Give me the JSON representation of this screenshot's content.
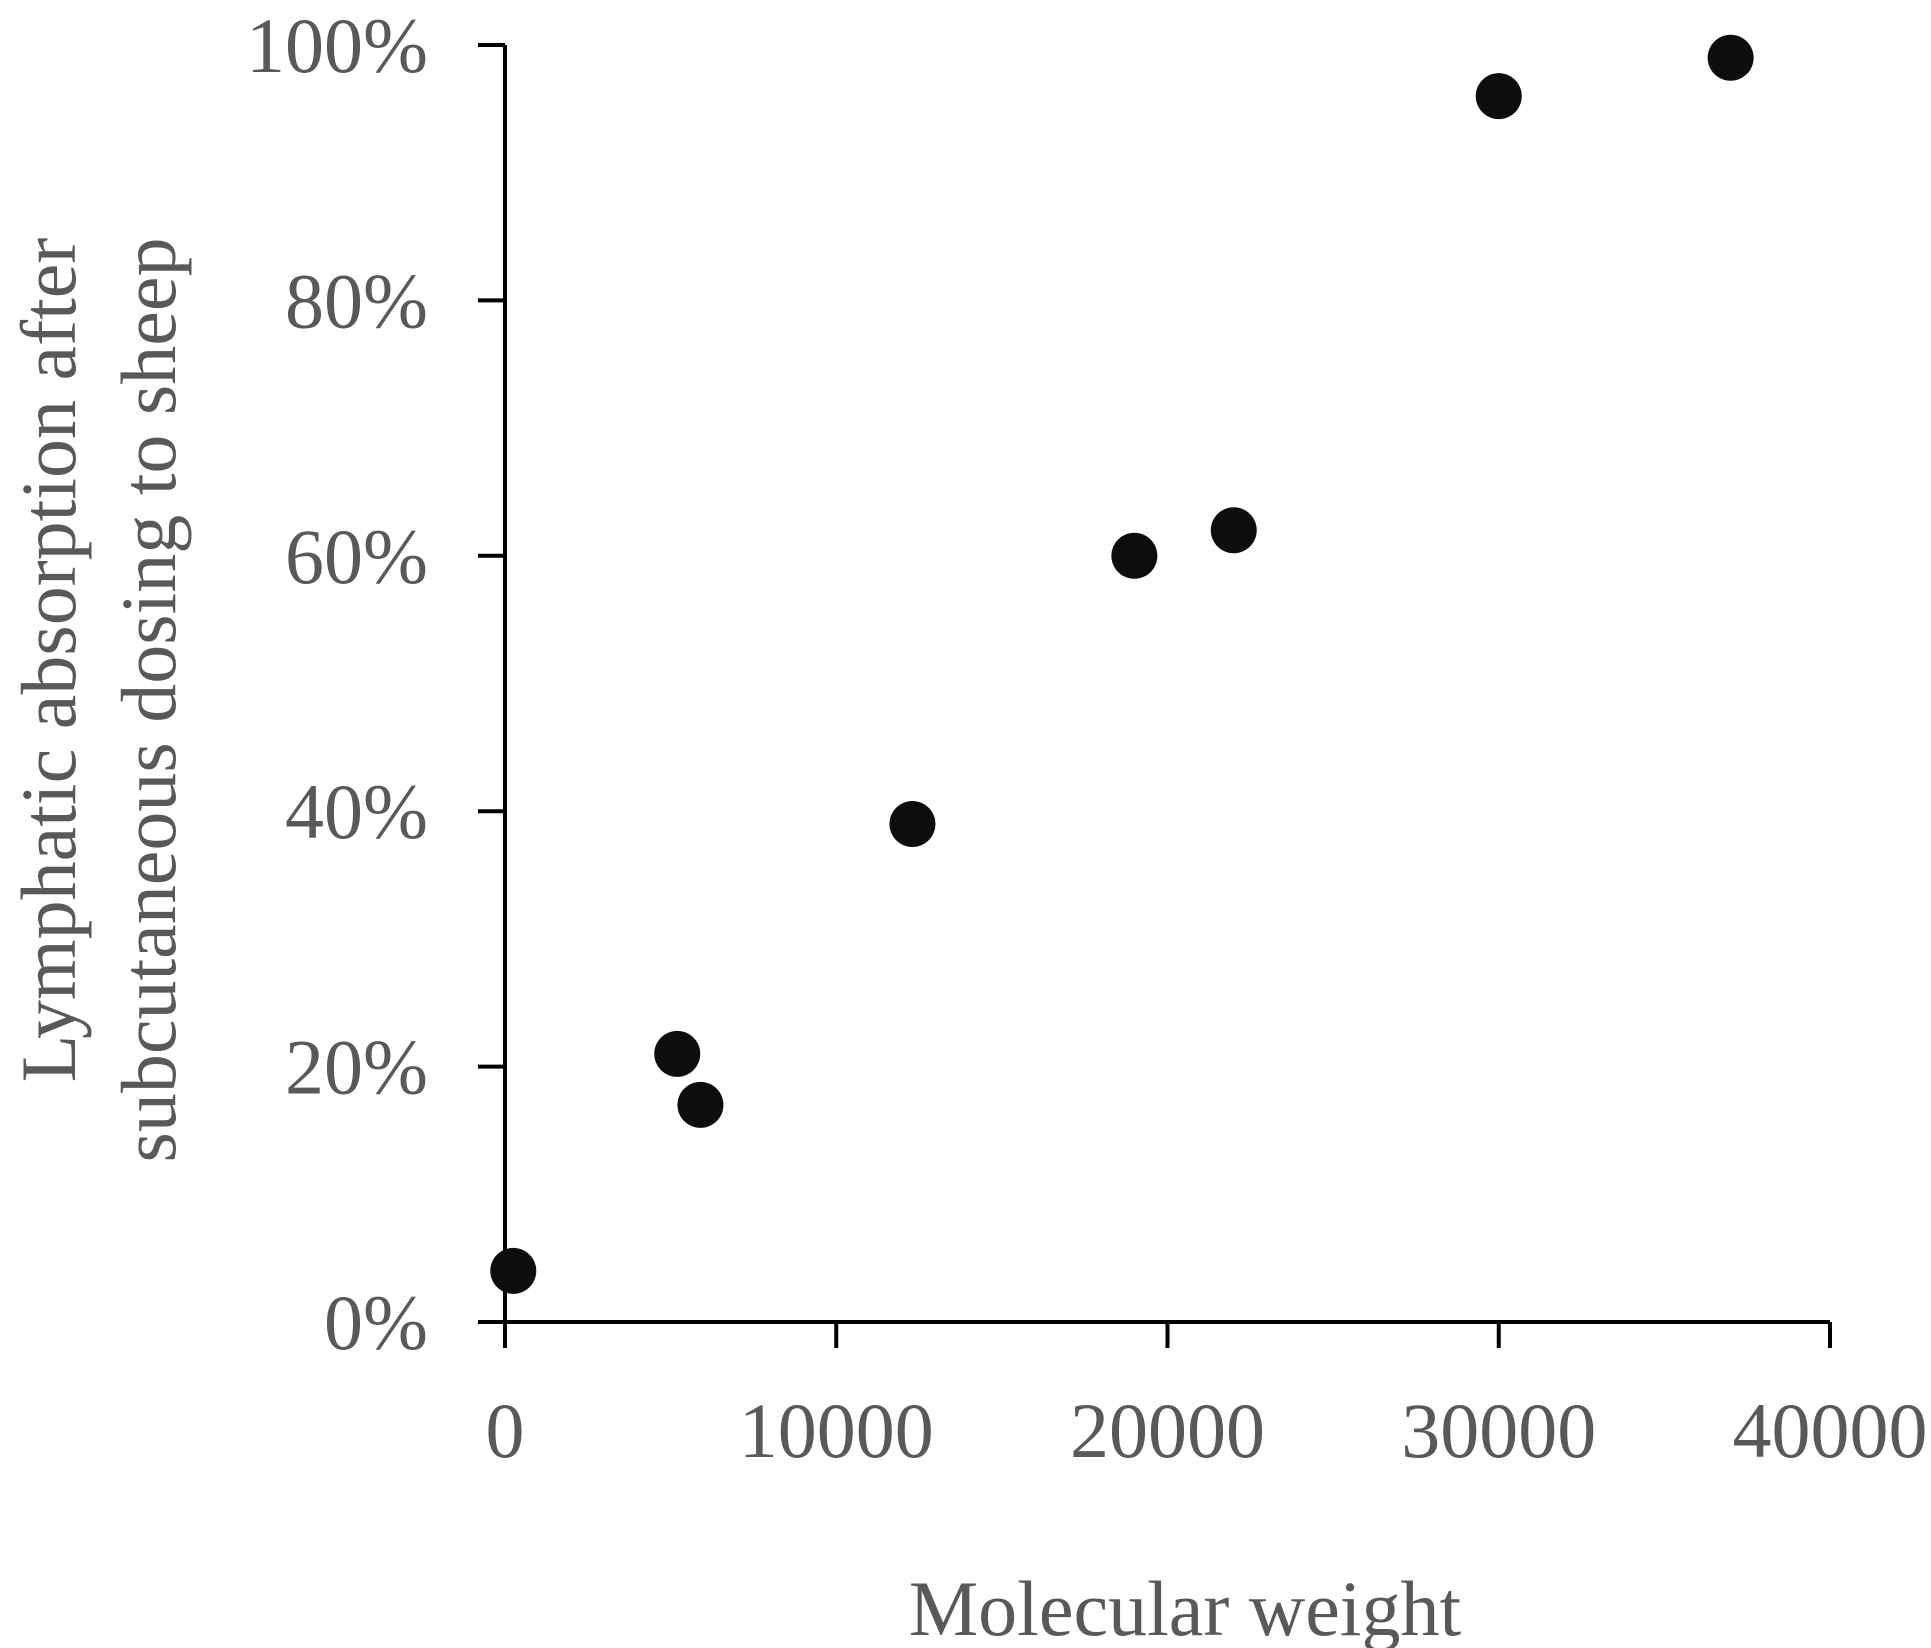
{
  "chart_data": {
    "type": "scatter",
    "title": "",
    "xlabel": "Molecular weight",
    "ylabel_lines": [
      "Lymphatic absorption after",
      "subcutaneous dosing to sheep"
    ],
    "xlim": [
      0,
      40000
    ],
    "ylim": [
      0,
      100
    ],
    "x_ticks": [
      {
        "value": 0,
        "label": "0"
      },
      {
        "value": 10000,
        "label": "10000"
      },
      {
        "value": 20000,
        "label": "20000"
      },
      {
        "value": 30000,
        "label": "30000"
      },
      {
        "value": 40000,
        "label": "40000"
      }
    ],
    "y_ticks": [
      {
        "value": 0,
        "label": "0%"
      },
      {
        "value": 20,
        "label": "20%"
      },
      {
        "value": 40,
        "label": "40%"
      },
      {
        "value": 60,
        "label": "60%"
      },
      {
        "value": 80,
        "label": "80%"
      },
      {
        "value": 100,
        "label": "100%"
      }
    ],
    "grid": false,
    "legend": "none",
    "colors": {
      "marker": "#0d0d0d",
      "axis": "#000000",
      "text": "#595959"
    },
    "series": [
      {
        "points": [
          {
            "x": 250,
            "y": 4
          },
          {
            "x": 5200,
            "y": 21
          },
          {
            "x": 5900,
            "y": 17
          },
          {
            "x": 12300,
            "y": 39
          },
          {
            "x": 19000,
            "y": 60
          },
          {
            "x": 22000,
            "y": 62
          },
          {
            "x": 30000,
            "y": 96
          },
          {
            "x": 37000,
            "y": 99
          }
        ]
      }
    ]
  }
}
